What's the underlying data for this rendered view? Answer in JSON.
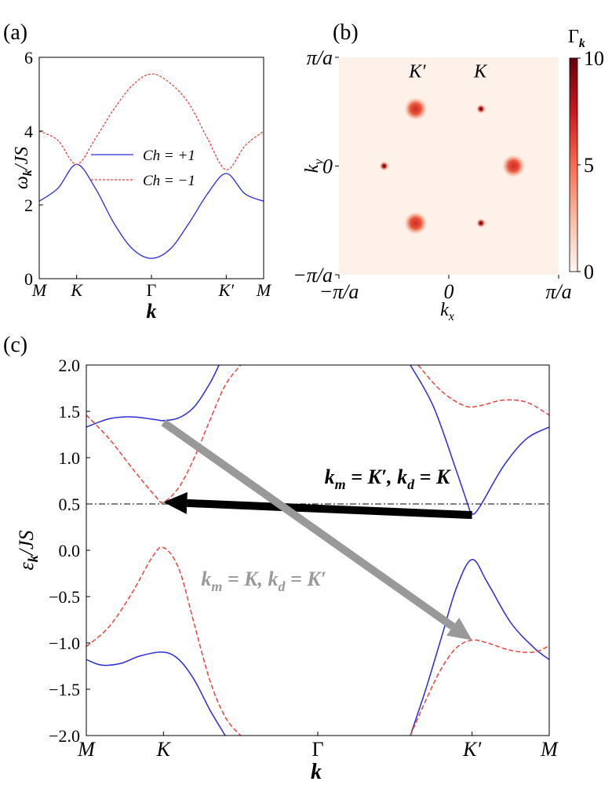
{
  "panels": {
    "a": "(a)",
    "b": "(b)",
    "c": "(c)"
  },
  "colors": {
    "blue": "#2b2bdb",
    "red": "#e8453c",
    "gray": "#999999",
    "black": "#000000"
  },
  "chart_data": [
    {
      "id": "a",
      "type": "line",
      "title": "",
      "xlabel": "k",
      "ylabel_main": "ω",
      "ylabel_sub": "k",
      "ylabel_rest": "/JS",
      "x_ticks": [
        {
          "x": 0,
          "label": "M",
          "italic": true
        },
        {
          "x": 1,
          "label": "K",
          "italic": true
        },
        {
          "x": 3,
          "label": "Γ",
          "italic": false
        },
        {
          "x": 5,
          "label": "K′",
          "italic": true
        },
        {
          "x": 6,
          "label": "M",
          "italic": true
        }
      ],
      "xlim": [
        0,
        6
      ],
      "ylim": [
        0,
        6
      ],
      "y_ticks": [
        0,
        2,
        4,
        6
      ],
      "legend": {
        "placement": "center",
        "entries": [
          "Ch = +1",
          "Ch = −1"
        ]
      },
      "series": [
        {
          "name": "Ch = +1",
          "color": "#2b2bdb",
          "dash": false,
          "x": [
            0,
            0.5,
            1,
            1.5,
            2,
            2.5,
            3,
            3.5,
            4,
            4.5,
            5,
            5.5,
            6
          ],
          "y": [
            2.1,
            2.45,
            3.1,
            2.45,
            1.5,
            0.8,
            0.55,
            0.8,
            1.5,
            2.3,
            2.85,
            2.3,
            2.1
          ]
        },
        {
          "name": "Ch = −1",
          "color": "#e8453c",
          "dash": true,
          "x": [
            0,
            0.5,
            1,
            1.5,
            2,
            2.5,
            3,
            3.5,
            4,
            4.5,
            5,
            5.5,
            6
          ],
          "y": [
            4.0,
            3.75,
            3.1,
            3.8,
            4.6,
            5.25,
            5.55,
            5.3,
            4.75,
            3.8,
            2.95,
            3.6,
            4.0
          ]
        }
      ]
    },
    {
      "id": "b",
      "type": "heatmap",
      "xlabel_main": "k",
      "xlabel_sub": "x",
      "ylabel_main": "k",
      "ylabel_sub": "y",
      "x_ticks": [
        "−π/a",
        "0",
        "π/a"
      ],
      "y_ticks": [
        "π/a",
        "0",
        "−π/a"
      ],
      "xlim": [
        -3.1416,
        3.1416
      ],
      "ylim": [
        -3.1416,
        3.1416
      ],
      "colorbar": {
        "label_main": "Γ",
        "label_sub": "k",
        "min": 0,
        "max": 10,
        "ticks": [
          0,
          5,
          10
        ]
      },
      "annotations": [
        {
          "text": "K′",
          "x": -0.9,
          "y": 2.75
        },
        {
          "text": "K",
          "x": 0.9,
          "y": 2.75
        }
      ],
      "peaks": [
        {
          "x": -0.95,
          "y": 1.65,
          "intensity": 7,
          "spread": 0.28
        },
        {
          "x": 0.92,
          "y": 1.65,
          "intensity": 10,
          "spread": 0.12
        },
        {
          "x": -1.85,
          "y": 0.0,
          "intensity": 10,
          "spread": 0.12
        },
        {
          "x": 1.85,
          "y": 0.0,
          "intensity": 7,
          "spread": 0.28
        },
        {
          "x": -0.95,
          "y": -1.65,
          "intensity": 7,
          "spread": 0.28
        },
        {
          "x": 0.92,
          "y": -1.65,
          "intensity": 10,
          "spread": 0.12
        }
      ]
    },
    {
      "id": "c",
      "type": "line",
      "xlabel": "k",
      "ylabel_main": "ε",
      "ylabel_sub": "k",
      "ylabel_rest": "/JS",
      "x_ticks": [
        {
          "x": 0,
          "label": "M",
          "italic": true
        },
        {
          "x": 1,
          "label": "K",
          "italic": true
        },
        {
          "x": 3,
          "label": "Γ",
          "italic": false
        },
        {
          "x": 5,
          "label": "K′",
          "italic": true
        },
        {
          "x": 6,
          "label": "M",
          "italic": true
        }
      ],
      "xlim": [
        0,
        6
      ],
      "ylim": [
        -2.0,
        2.0
      ],
      "y_ticks": [
        -2.0,
        -1.5,
        -1.0,
        -0.5,
        0.0,
        0.5,
        1.0,
        1.5,
        2.0
      ],
      "hline": 0.5,
      "series": [
        {
          "name": "upper-blue-left",
          "color": "#2b2bdb",
          "dash": false,
          "x": [
            0,
            0.3,
            0.6,
            0.9,
            1.0,
            1.2,
            1.4,
            1.6,
            1.72
          ],
          "y": [
            1.33,
            1.42,
            1.44,
            1.41,
            1.4,
            1.43,
            1.55,
            1.8,
            2.0
          ]
        },
        {
          "name": "upper-red-left",
          "color": "#e8453c",
          "dash": true,
          "x": [
            0,
            0.3,
            0.6,
            0.9,
            1.0,
            1.2,
            1.4,
            1.6,
            1.8,
            2.0
          ],
          "y": [
            1.46,
            1.2,
            0.88,
            0.58,
            0.52,
            0.68,
            1.0,
            1.4,
            1.78,
            2.0
          ]
        },
        {
          "name": "lower-red-left",
          "color": "#e8453c",
          "dash": true,
          "x": [
            0,
            0.3,
            0.6,
            0.85,
            1.0,
            1.2,
            1.4,
            1.6,
            1.8,
            2.0
          ],
          "y": [
            -1.04,
            -0.82,
            -0.45,
            -0.08,
            0.03,
            -0.2,
            -0.8,
            -1.4,
            -1.8,
            -2.0
          ]
        },
        {
          "name": "lower-blue-left",
          "color": "#2b2bdb",
          "dash": false,
          "x": [
            0,
            0.2,
            0.45,
            0.7,
            1.0,
            1.2,
            1.4,
            1.6,
            1.8
          ],
          "y": [
            -1.18,
            -1.24,
            -1.22,
            -1.14,
            -1.1,
            -1.18,
            -1.4,
            -1.72,
            -2.0
          ]
        },
        {
          "name": "upper-blue-right",
          "color": "#2b2bdb",
          "dash": false,
          "x": [
            4.2,
            4.5,
            4.8,
            4.95,
            5.0,
            5.1,
            5.4,
            5.7,
            6.0
          ],
          "y": [
            2.0,
            1.55,
            0.85,
            0.48,
            0.39,
            0.47,
            0.9,
            1.2,
            1.33
          ]
        },
        {
          "name": "upper-red-right",
          "color": "#e8453c",
          "dash": true,
          "x": [
            4.3,
            4.6,
            4.9,
            5.1,
            5.4,
            5.7,
            6.0
          ],
          "y": [
            2.0,
            1.72,
            1.56,
            1.56,
            1.62,
            1.6,
            1.46
          ]
        },
        {
          "name": "lower-blue-right",
          "color": "#2b2bdb",
          "dash": false,
          "x": [
            4.2,
            4.4,
            4.6,
            4.8,
            5.0,
            5.2,
            5.5,
            5.8,
            6.0
          ],
          "y": [
            -2.0,
            -1.5,
            -0.95,
            -0.4,
            -0.1,
            -0.35,
            -0.78,
            -1.05,
            -1.18
          ]
        },
        {
          "name": "lower-red-right",
          "color": "#e8453c",
          "dash": true,
          "x": [
            4.2,
            4.4,
            4.6,
            4.8,
            5.0,
            5.2,
            5.5,
            5.8,
            6.0
          ],
          "y": [
            -2.0,
            -1.62,
            -1.28,
            -1.05,
            -0.97,
            -1.0,
            -1.08,
            -1.1,
            -1.03
          ]
        }
      ],
      "arrows": [
        {
          "name": "black-arrow",
          "color": "#000000",
          "from": [
            5.0,
            0.38
          ],
          "to": [
            1.0,
            0.52
          ],
          "label_parts": [
            "k",
            "m",
            " = K′, ",
            "k",
            "d",
            " = K"
          ],
          "label_at": [
            3.9,
            0.72
          ]
        },
        {
          "name": "gray-arrow",
          "color": "#999999",
          "from": [
            1.0,
            1.38
          ],
          "to": [
            5.0,
            -0.97
          ],
          "label_parts": [
            "k",
            "m",
            " = K, ",
            "k",
            "d",
            " = K′"
          ],
          "label_at": [
            2.3,
            -0.38
          ]
        }
      ]
    }
  ]
}
